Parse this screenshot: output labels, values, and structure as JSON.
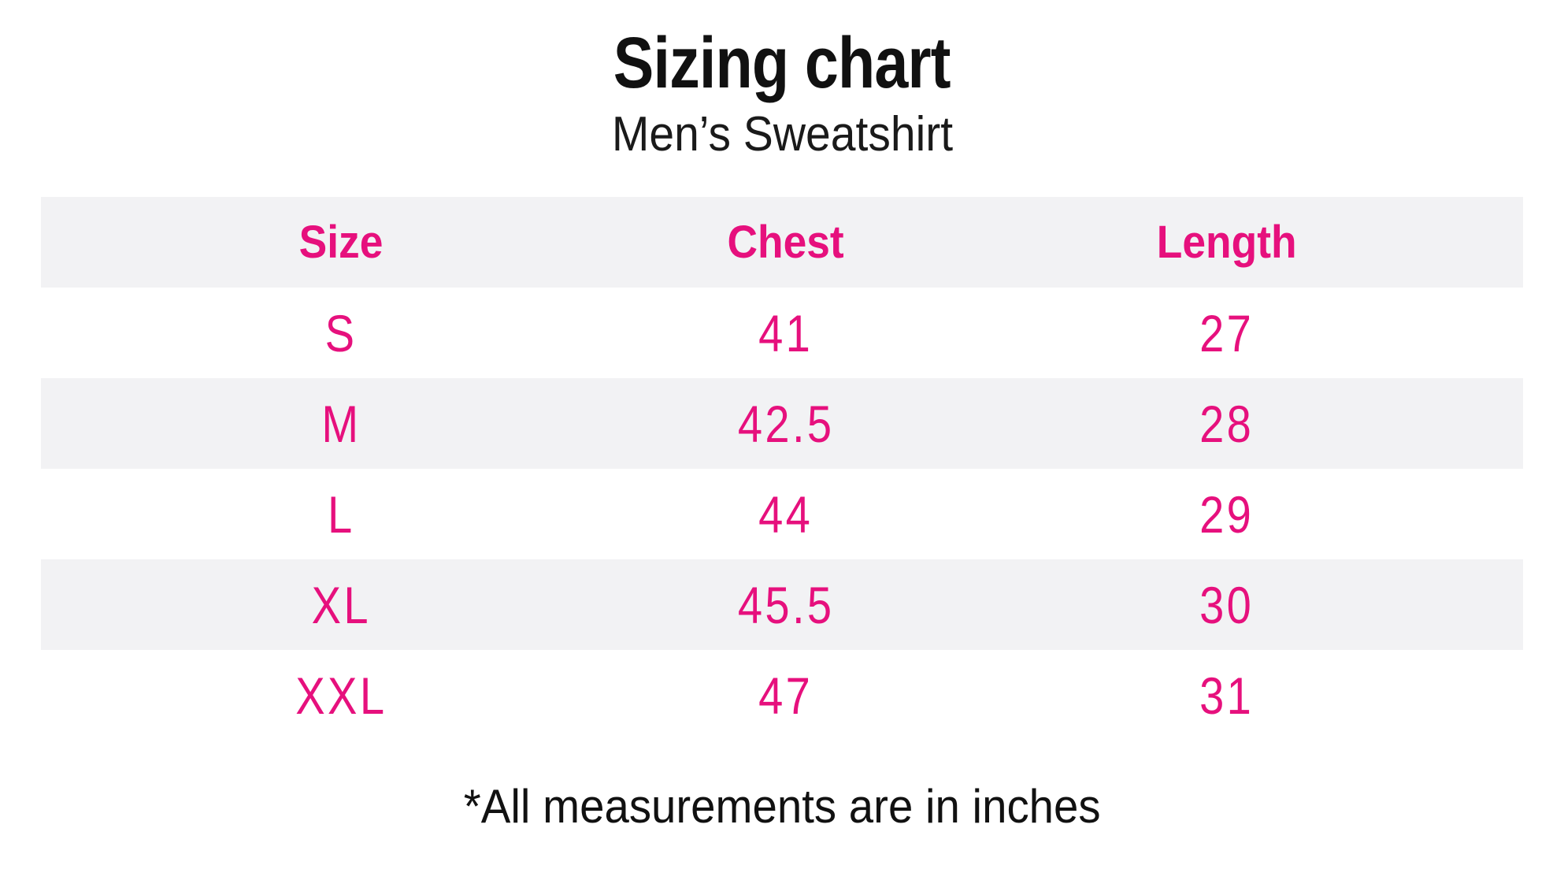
{
  "page": {
    "title": "Sizing chart",
    "subtitle": "Men’s Sweatshirt",
    "footnote": "*All measurements are in inches"
  },
  "chart_data": {
    "type": "table",
    "title": "Sizing chart",
    "subtitle": "Men’s Sweatshirt",
    "columns": [
      "Size",
      "Chest",
      "Length"
    ],
    "rows": [
      {
        "size": "S",
        "chest": "41",
        "length": "27"
      },
      {
        "size": "M",
        "chest": "42.5",
        "length": "28"
      },
      {
        "size": "L",
        "chest": "44",
        "length": "29"
      },
      {
        "size": "XL",
        "chest": "45.5",
        "length": "30"
      },
      {
        "size": "XXL",
        "chest": "47",
        "length": "31"
      }
    ],
    "units": "inches",
    "footnote": "*All measurements are in inches",
    "layout": {
      "header_row_background": "#f2f2f4",
      "alternating_row_background": "#f2f2f4",
      "accent_color": "#e6107d",
      "text_color": "#111111"
    }
  },
  "colors": {
    "accent_pink": "#e6107d",
    "row_alt_gray": "#f2f2f4",
    "text_black": "#111111"
  }
}
